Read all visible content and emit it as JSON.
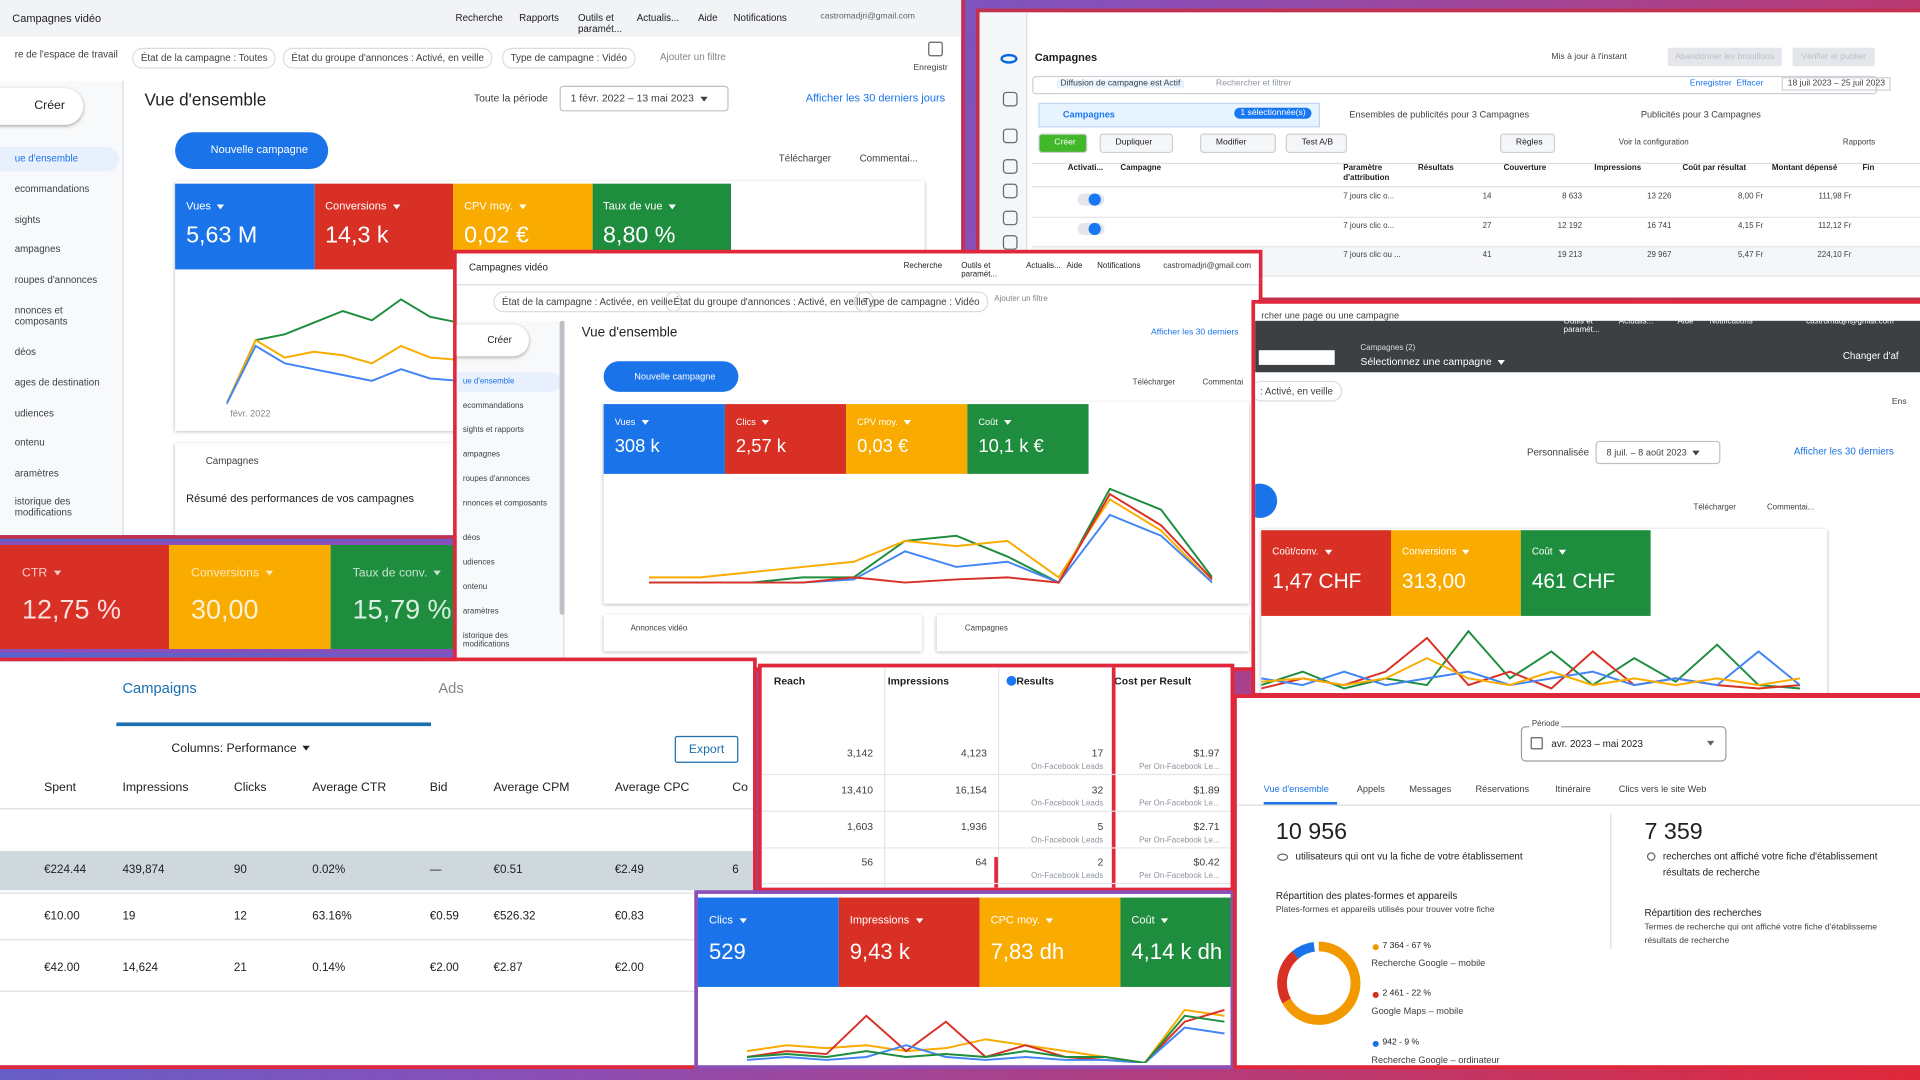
{
  "panel_a": {
    "app_title": "Campagnes vidéo",
    "menu": [
      "Recherche",
      "Rapports",
      "Outils et paramét...",
      "Actualis...",
      "Aide",
      "Notifications"
    ],
    "email": "castromadjri@gmail.com",
    "workspace": "re de l'espace de travail",
    "filters": [
      "État de la campagne : Toutes",
      "État du groupe d'annonces : Activé, en veille",
      "Type de campagne : Vidéo"
    ],
    "add_filter": "Ajouter un filtre",
    "save": "Enregistr",
    "create": "Créer",
    "nav": [
      "ue d'ensemble",
      "ecommandations",
      "sights",
      "ampagnes",
      "roupes d'annonces",
      "nnonces et composants",
      "déos",
      "ages de destination",
      "udiences",
      "ontenu",
      "aramètres",
      "istorique des modifications"
    ],
    "heading": "Vue d'ensemble",
    "period_label": "Toute la période",
    "date_range": "1 févr. 2022 – 13 mai 2023",
    "last_30": "Afficher les 30 derniers jours",
    "new_campaign": "Nouvelle campagne",
    "download": "Télécharger",
    "comment": "Commentai...",
    "metrics": [
      {
        "label": "Vues",
        "value": "5,63 M",
        "color": "#1a73e8"
      },
      {
        "label": "Conversions",
        "value": "14,3 k",
        "color": "#d93025"
      },
      {
        "label": "CPV moy.",
        "value": "0,02 €",
        "color": "#f9ab00"
      },
      {
        "label": "Taux de vue",
        "value": "8,80 %",
        "color": "#1e8e3e"
      }
    ],
    "chart_axis_label": "févr. 2022",
    "campaigns_card_title": "Campagnes",
    "campaigns_card_text": "Résumé des performances de vos campagnes"
  },
  "panel_b": {
    "title": "Campagnes",
    "updated": "Mis à jour à l'instant",
    "discard": "Abandonner les brouillons",
    "publish": "Vérifier et publier",
    "filter_chip": "Diffusion de campagne est Actif",
    "search": "Rechercher et filtrer",
    "save": "Enregistrer",
    "clear": "Effacer",
    "date_range": "18 juil 2023 – 25 juil 2023",
    "tab_campaigns": "Campagnes",
    "selected": "1 sélectionnée(s)",
    "tab_adsets": "Ensembles de publicités pour 3 Campagnes",
    "tab_ads": "Publicités pour 3 Campagnes",
    "toolbar": [
      "Créer",
      "Dupliquer",
      "Modifier",
      "Test A/B",
      "Règles"
    ],
    "view_config": "Voir la configuration",
    "reports": "Rapports",
    "columns": [
      "Activati...",
      "Campagne",
      "Paramètre d'attribution",
      "Résultats",
      "Couverture",
      "Impressions",
      "Coût par résultat",
      "Montant dépensé",
      "Fin"
    ],
    "rows": [
      [
        "7 jours clic o...",
        "14",
        "8 633",
        "13 226",
        "8,00 Fr",
        "111,98 Fr"
      ],
      [
        "7 jours clic o...",
        "27",
        "12 192",
        "16 741",
        "4,15 Fr",
        "112,12 Fr"
      ],
      [
        "7 jours clic ou ...",
        "41",
        "19 213",
        "29 967",
        "5,47 Fr",
        "224,10 Fr"
      ]
    ]
  },
  "panel_c": {
    "metrics": [
      {
        "label": "CTR",
        "value": "12,75 %",
        "color": "#d93025"
      },
      {
        "label": "Conversions",
        "value": "30,00",
        "color": "#f9ab00"
      },
      {
        "label": "Taux de conv.",
        "value": "15,79 %",
        "color": "#1e8e3e"
      }
    ]
  },
  "panel_d": {
    "app_title": "Campagnes vidéo",
    "menu": [
      "Recherche",
      "Outils et paramét...",
      "Actualis...",
      "Aide",
      "Notifications"
    ],
    "email": "castromadjri@gmail.com",
    "filters": [
      "État de la campagne : Activée, en veille",
      "État du groupe d'annonces : Activé, en veille",
      "Type de campagne : Vidéo"
    ],
    "add_filter": "Ajouter un filtre",
    "create": "Créer",
    "nav": [
      "ue d'ensemble",
      "ecommandations",
      "sights et rapports",
      "ampagnes",
      "roupes d'annonces",
      "nnonces et composants",
      "déos",
      "udiences",
      "ontenu",
      "aramètres",
      "istorique des modifications"
    ],
    "heading": "Vue d'ensemble",
    "last_30": "Afficher les 30 derniers",
    "new_campaign": "Nouvelle campagne",
    "download": "Télécharger",
    "comment": "Commentai",
    "metrics": [
      {
        "label": "Vues",
        "value": "308 k",
        "color": "#1a73e8"
      },
      {
        "label": "Clics",
        "value": "2,57 k",
        "color": "#d93025"
      },
      {
        "label": "CPV moy.",
        "value": "0,03 €",
        "color": "#f9ab00"
      },
      {
        "label": "Coût",
        "value": "10,1 k €",
        "color": "#1e8e3e"
      }
    ],
    "card_video_ads": "Annonces vidéo",
    "card_campaigns": "Campagnes"
  },
  "panel_e": {
    "search": "rcher une page ou une campagne",
    "menu": [
      "Outils et paramét...",
      "Actualis...",
      "Aide",
      "Notifications"
    ],
    "email": "castromadjri@gmail.com",
    "campaigns_count": "Campagnes (2)",
    "select_campaign": "Sélectionnez une campagne",
    "change": "Changer d'af",
    "filter_chip": ": Activé, en veille",
    "ens": "Ens",
    "period_label": "Personnalisée",
    "date_range": "8 juil. – 8 août 2023",
    "last_30": "Afficher les 30 derniers",
    "download": "Télécharger",
    "comment": "Commentai...",
    "metrics": [
      {
        "label": "Coût/conv.",
        "value": "1,47 CHF",
        "color": "#d93025"
      },
      {
        "label": "Conversions",
        "value": "313,00",
        "color": "#f9ab00"
      },
      {
        "label": "Coût",
        "value": "461 CHF",
        "color": "#1e8e3e"
      }
    ]
  },
  "panel_f": {
    "tabs": [
      "Campaigns",
      "Ads"
    ],
    "columns_selector": "Columns: Performance",
    "export": "Export",
    "headers": [
      "Spent",
      "Impressions",
      "Clicks",
      "Average CTR",
      "Bid",
      "Average CPM",
      "Average CPC",
      "Co"
    ],
    "rows": [
      [
        "€224.44",
        "439,874",
        "90",
        "0.02%",
        "—",
        "€0.51",
        "€2.49",
        "6"
      ],
      [
        "€10.00",
        "19",
        "12",
        "63.16%",
        "€0.59",
        "€526.32",
        "€0.83"
      ],
      [
        "€42.00",
        "14,624",
        "21",
        "0.14%",
        "€2.00",
        "€2.87",
        "€2.00"
      ]
    ]
  },
  "panel_g": {
    "headers": [
      "Reach",
      "Impressions",
      "Results",
      "Cost per Result"
    ],
    "rows": [
      {
        "reach": "3,142",
        "impressions": "4,123",
        "results": "17",
        "results_type": "On-Facebook Leads",
        "cost": "$1.97",
        "cost_type": "Per On-Facebook Le..."
      },
      {
        "reach": "13,410",
        "impressions": "16,154",
        "results": "32",
        "results_type": "On-Facebook Leads",
        "cost": "$1.89",
        "cost_type": "Per On-Facebook Le..."
      },
      {
        "reach": "1,603",
        "impressions": "1,936",
        "results": "5",
        "results_type": "On-Facebook Leads",
        "cost": "$2.71",
        "cost_type": "Per On-Facebook Le..."
      },
      {
        "reach": "56",
        "impressions": "64",
        "results": "2",
        "results_type": "On-Facebook Leads",
        "cost": "$0.42",
        "cost_type": "Per On-Facebook Le..."
      }
    ]
  },
  "panel_h": {
    "metrics": [
      {
        "label": "Clics",
        "value": "529",
        "color": "#1a73e8"
      },
      {
        "label": "Impressions",
        "value": "9,43 k",
        "color": "#d93025"
      },
      {
        "label": "CPC moy.",
        "value": "7,83 dh",
        "color": "#f9ab00"
      },
      {
        "label": "Coût",
        "value": "4,14 k dh",
        "color": "#1e8e3e"
      }
    ]
  },
  "panel_i": {
    "period_label": "Période",
    "period": "avr. 2023 – mai 2023",
    "tabs": [
      "Vue d'ensemble",
      "Appels",
      "Messages",
      "Réservations",
      "Itinéraire",
      "Clics vers le site Web"
    ],
    "views_value": "10 956",
    "views_text": "utilisateurs qui ont vu la fiche de votre établissement",
    "searches_value": "7 359",
    "searches_text": [
      "recherches ont affiché votre fiche d'établissement",
      "résultats de recherche"
    ],
    "platforms_title": "Répartition des plates-formes et appareils",
    "platforms_subtitle": "Plates-formes et appareils utilisés pour trouver votre fiche",
    "searches_title": "Répartition des recherches",
    "searches_subtitle": [
      "Termes de recherche qui ont affiché votre fiche d'établisseme",
      "résultats de recherche"
    ],
    "chart_data": {
      "type": "donut",
      "series": [
        {
          "name": "Recherche Google – mobile",
          "value": 67,
          "value_label": "7 364 - 67 %",
          "color": "#f29900"
        },
        {
          "name": "Google Maps – mobile",
          "value": 22,
          "value_label": "2 461 - 22 %",
          "color": "#d93025"
        },
        {
          "name": "Recherche Google – ordinateur",
          "value": 9,
          "value_label": "942 - 9 %",
          "color": "#1a73e8"
        }
      ]
    }
  }
}
